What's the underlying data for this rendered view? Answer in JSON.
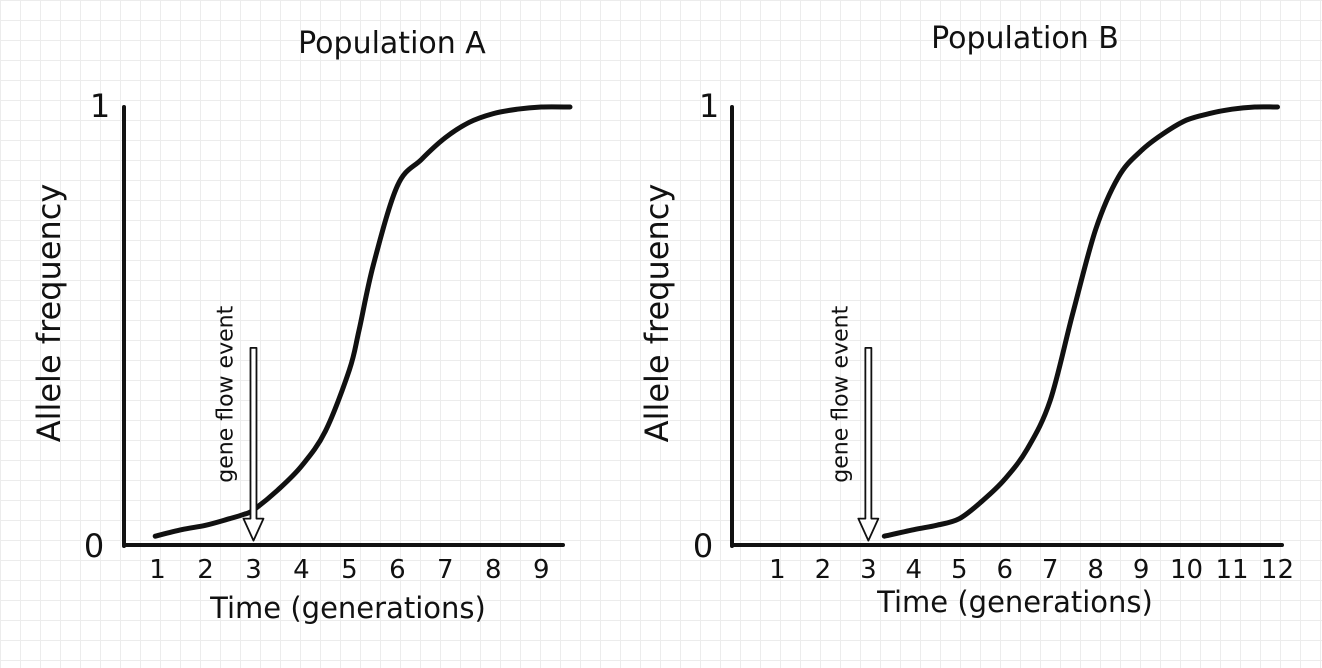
{
  "chart_data": [
    {
      "type": "line",
      "title": "Population A",
      "xlabel": "Time (generations)",
      "ylabel": "Allele frequency",
      "xlim": [
        0.3,
        9.6
      ],
      "ylim": [
        0,
        1
      ],
      "x_ticks": [
        1,
        2,
        3,
        4,
        5,
        6,
        7,
        8,
        9
      ],
      "y_ticks": [
        0,
        1
      ],
      "y_tick_labels": [
        "0",
        "1"
      ],
      "grid": false,
      "series": [
        {
          "x": [
            0.95,
            1.5,
            2.0,
            2.5,
            2.8,
            3.0,
            3.5,
            4.0,
            4.5,
            5.0,
            5.2,
            5.5,
            6.0,
            6.5,
            7.0,
            7.5,
            8.0,
            8.5,
            9.0,
            9.6
          ],
          "y": [
            0.02,
            0.035,
            0.045,
            0.06,
            0.07,
            0.08,
            0.125,
            0.18,
            0.26,
            0.4,
            0.49,
            0.64,
            0.82,
            0.88,
            0.93,
            0.965,
            0.985,
            0.995,
            1.0,
            1.0
          ]
        }
      ],
      "annotations": [
        {
          "text": "gene flow event",
          "x": 3,
          "y_top": 0.45,
          "y_bottom": 0.01,
          "type": "arrow"
        }
      ]
    },
    {
      "type": "line",
      "title": "Population B",
      "xlabel": "Time (generations)",
      "ylabel": "Allele frequency",
      "xlim": [
        0.0,
        12.1
      ],
      "ylim": [
        0,
        1
      ],
      "x_ticks": [
        1,
        2,
        3,
        4,
        5,
        6,
        7,
        8,
        9,
        10,
        11,
        12
      ],
      "y_ticks": [
        0,
        1
      ],
      "y_tick_labels": [
        "0",
        "1"
      ],
      "grid": false,
      "series": [
        {
          "x": [
            3.35,
            4.0,
            4.5,
            5.0,
            5.5,
            6.0,
            6.5,
            7.0,
            7.5,
            8.0,
            8.5,
            9.0,
            9.5,
            10.0,
            10.5,
            11.0,
            11.5,
            12.0
          ],
          "y": [
            0.02,
            0.035,
            0.045,
            0.06,
            0.1,
            0.15,
            0.22,
            0.33,
            0.53,
            0.72,
            0.84,
            0.9,
            0.94,
            0.97,
            0.985,
            0.995,
            1.0,
            1.0
          ]
        }
      ],
      "annotations": [
        {
          "text": "gene flow event",
          "x": 3,
          "y_top": 0.45,
          "y_bottom": 0.01,
          "type": "arrow"
        }
      ]
    }
  ]
}
